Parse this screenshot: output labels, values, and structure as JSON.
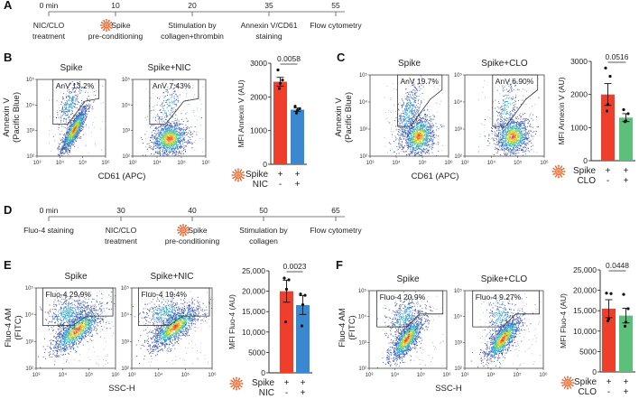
{
  "panels": {
    "A": {
      "label": "A",
      "timeline": [
        {
          "time": "0 min",
          "desc": [
            "NIC/CLO",
            "treatment"
          ]
        },
        {
          "time": "10",
          "desc": [
            "Spike",
            "pre-conditioning"
          ],
          "virus": true
        },
        {
          "time": "20",
          "desc": [
            "Stimulation by",
            "collagen+thrombin"
          ]
        },
        {
          "time": "35",
          "desc": [
            "Annexin V/CD61",
            "staining"
          ]
        },
        {
          "time": "55",
          "desc": [
            "Flow cytometry"
          ]
        }
      ]
    },
    "B": {
      "label": "B",
      "ylabel": [
        "Annexin V",
        "(Pacific Blue)"
      ],
      "xlabel": "CD61 (APC)",
      "plots": [
        {
          "title": "Spike",
          "gate": "AnV 13.2%"
        },
        {
          "title": "Spike+NIC",
          "gate": "AnV 7.43%"
        }
      ]
    },
    "C": {
      "label": "C",
      "ylabel": [
        "Annexin V",
        "(Pacific Blue)"
      ],
      "xlabel": "CD61 (APC)",
      "plots": [
        {
          "title": "Spike",
          "gate": "AnV 19.7%"
        },
        {
          "title": "Spike+CLO",
          "gate": "AnV 6.90%"
        }
      ]
    },
    "D": {
      "label": "D",
      "timeline": [
        {
          "time": "0 min",
          "desc": [
            "Fluo-4 staining"
          ]
        },
        {
          "time": "30",
          "desc": [
            "NIC/CLO",
            "treatment"
          ]
        },
        {
          "time": "40",
          "desc": [
            "Spike",
            "pre-conditioning"
          ],
          "virus": true
        },
        {
          "time": "50",
          "desc": [
            "Stimulation by",
            "collagen"
          ]
        },
        {
          "time": "65",
          "desc": [
            "Flow cytometry"
          ]
        }
      ]
    },
    "E": {
      "label": "E",
      "ylabel": [
        "Fluo-4 AM",
        "(FITC)"
      ],
      "xlabel": "SSC-H",
      "plots": [
        {
          "title": "Spike",
          "gate": "Fluo-4 29.9%"
        },
        {
          "title": "Spike+NIC",
          "gate": "Fluo-4 19.4%"
        }
      ]
    },
    "F": {
      "label": "F",
      "ylabel": [
        "Fluo-4 AM",
        "(FITC)"
      ],
      "xlabel": "SSC-H",
      "plots": [
        {
          "title": "Spike",
          "gate": "Fluo-4 20.9%"
        },
        {
          "title": "Spike+CLO",
          "gate": "Fluo-4 9.27%"
        }
      ]
    }
  },
  "flow_axes": {
    "x_ticks": [
      "10³",
      "10⁴",
      "10⁵",
      "10⁶"
    ],
    "y_ticks": [
      "10²",
      "10³",
      "10⁴",
      "10⁵"
    ]
  },
  "colors": {
    "spike": "#ee3f2d",
    "nic": "#3a88cf",
    "clo": "#5cc07a",
    "virus": "#e8632e"
  },
  "chart_data": [
    {
      "panel": "B",
      "type": "bar",
      "ylabel": "MFI Annexin V (AU)",
      "ylim": [
        0,
        3000
      ],
      "yticks": [
        {
          "v": 0,
          "label": "0"
        },
        {
          "v": 1000,
          "label": "1000"
        },
        {
          "v": 2000,
          "label": "2000"
        },
        {
          "v": 3000,
          "label": "3000"
        }
      ],
      "pvalue": "0.0058",
      "series": [
        {
          "name": "Spike",
          "value": 2450,
          "sem": 130,
          "points": [
            2800,
            2500,
            2400,
            2250
          ],
          "color": "#ee3f2d"
        },
        {
          "name": "Spike+NIC",
          "value": 1620,
          "sem": 50,
          "points": [
            1720,
            1650,
            1600,
            1520
          ],
          "color": "#3a88cf"
        }
      ],
      "conditions": [
        {
          "label": "Spike",
          "values": [
            "+",
            "+"
          ]
        },
        {
          "label": "NIC",
          "values": [
            "-",
            "+"
          ]
        }
      ]
    },
    {
      "panel": "C",
      "type": "bar",
      "ylabel": "MFI Annexin V (AU)",
      "ylim": [
        0,
        3000
      ],
      "yticks": [
        {
          "v": 0,
          "label": "0"
        },
        {
          "v": 1000,
          "label": "1000"
        },
        {
          "v": 2000,
          "label": "2000"
        },
        {
          "v": 3000,
          "label": "3000"
        }
      ],
      "pvalue": "0.0516",
      "series": [
        {
          "name": "Spike",
          "value": 2000,
          "sem": 330,
          "points": [
            2800,
            2550,
            1700,
            1500
          ],
          "color": "#ee3f2d"
        },
        {
          "name": "Spike+CLO",
          "value": 1300,
          "sem": 120,
          "points": [
            1540,
            1420,
            1200,
            1180
          ],
          "color": "#5cc07a"
        }
      ],
      "conditions": [
        {
          "label": "Spike",
          "values": [
            "+",
            "+"
          ]
        },
        {
          "label": "CLO",
          "values": [
            "-",
            "+"
          ]
        }
      ]
    },
    {
      "panel": "E",
      "type": "bar",
      "ylabel": "MFI Fluo-4 (AU)",
      "ylim": [
        0,
        25000
      ],
      "yticks": [
        {
          "v": 0,
          "label": "0"
        },
        {
          "v": 5000,
          "label": "5000"
        },
        {
          "v": 10000,
          "label": "10,000"
        },
        {
          "v": 15000,
          "label": "15,000"
        },
        {
          "v": 20000,
          "label": "20,000"
        },
        {
          "v": 25000,
          "label": "25,000"
        }
      ],
      "pvalue": "0.0023",
      "series": [
        {
          "name": "Spike",
          "value": 20000,
          "sem": 2700,
          "points": [
            23200,
            22800,
            20500,
            12500
          ],
          "color": "#ee3f2d"
        },
        {
          "name": "Spike+NIC",
          "value": 16600,
          "sem": 2300,
          "points": [
            19300,
            19000,
            16700,
            11500
          ],
          "color": "#3a88cf"
        }
      ],
      "conditions": [
        {
          "label": "Spike",
          "values": [
            "+",
            "+"
          ]
        },
        {
          "label": "NIC",
          "values": [
            "-",
            "+"
          ]
        }
      ]
    },
    {
      "panel": "F",
      "type": "bar",
      "ylabel": "MFI Fluo-4 (AU)",
      "ylim": [
        0,
        25000
      ],
      "yticks": [
        {
          "v": 0,
          "label": "0"
        },
        {
          "v": 5000,
          "label": "5000"
        },
        {
          "v": 10000,
          "label": "10,000"
        },
        {
          "v": 15000,
          "label": "15,000"
        },
        {
          "v": 20000,
          "label": "20,000"
        },
        {
          "v": 25000,
          "label": "25,000"
        }
      ],
      "pvalue": "0.0448",
      "series": [
        {
          "name": "Spike",
          "value": 15500,
          "sem": 2200,
          "points": [
            19300,
            19200,
            13000,
            12500
          ],
          "color": "#ee3f2d"
        },
        {
          "name": "Spike+CLO",
          "value": 13800,
          "sem": 1800,
          "points": [
            19000,
            15500,
            12200,
            11200
          ],
          "color": "#5cc07a"
        }
      ],
      "conditions": [
        {
          "label": "Spike",
          "values": [
            "+",
            "+"
          ]
        },
        {
          "label": "CLO",
          "values": [
            "-",
            "+"
          ]
        }
      ]
    }
  ]
}
